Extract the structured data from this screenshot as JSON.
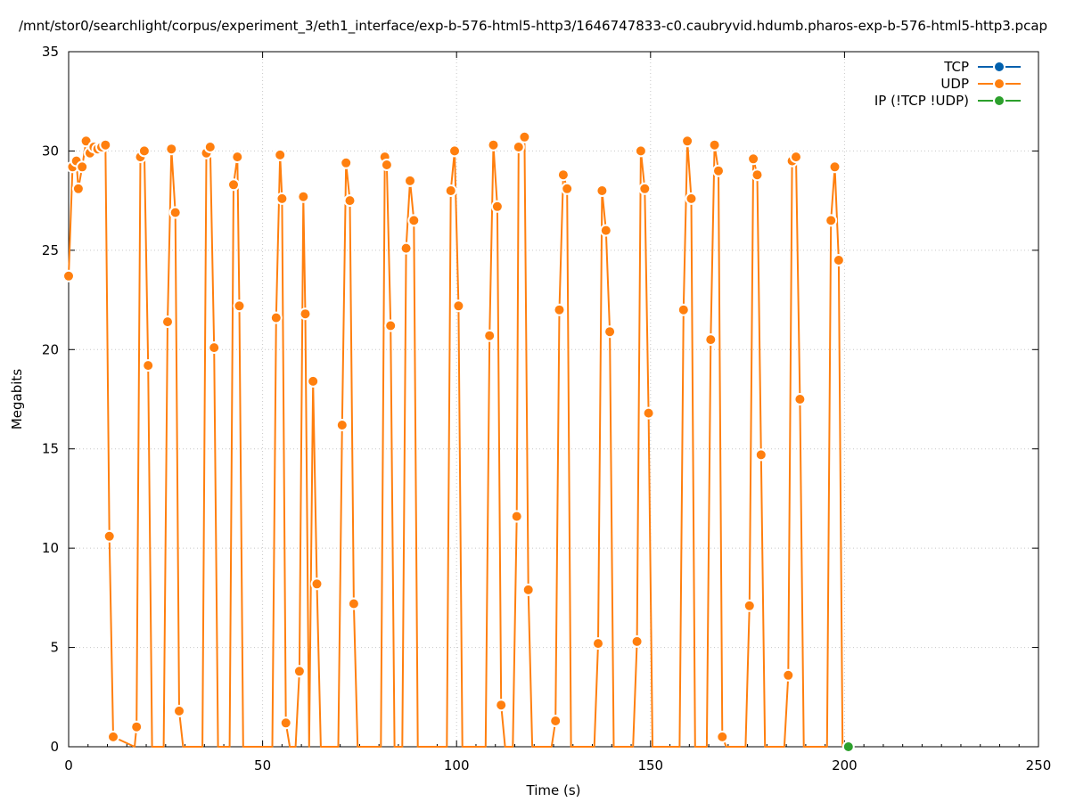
{
  "chart_data": {
    "type": "line",
    "title": "/mnt/stor0/searchlight/corpus/experiment_3/eth1_interface/exp-b-576-html5-http3/1646747833-c0.caubryvid.hdumb.pharos-exp-b-576-html5-http3.pcap",
    "xlabel": "Time (s)",
    "ylabel": "Megabits",
    "xlim": [
      0,
      250
    ],
    "ylim": [
      0,
      35
    ],
    "xticks": [
      0,
      50,
      100,
      150,
      200,
      250
    ],
    "yticks": [
      0,
      5,
      10,
      15,
      20,
      25,
      30,
      35
    ],
    "xtick_labels": [
      "0",
      "50",
      "100",
      "150",
      "200",
      "250"
    ],
    "ytick_labels": [
      "0",
      "5",
      "10",
      "15",
      "20",
      "25",
      "30",
      "35"
    ],
    "grid": true,
    "legend_position": "top-right",
    "series": [
      {
        "name": "TCP",
        "color": "#0060ad",
        "points": []
      },
      {
        "name": "UDP",
        "color": "#ff7f0e",
        "points": [
          [
            0,
            23.7
          ],
          [
            1,
            29.2
          ],
          [
            2,
            29.5
          ],
          [
            2.5,
            28.1
          ],
          [
            3.5,
            29.2
          ],
          [
            4.5,
            30.5
          ],
          [
            5.5,
            29.9
          ],
          [
            6.5,
            30.2
          ],
          [
            7.5,
            30.1
          ],
          [
            8.5,
            30.2
          ],
          [
            9.5,
            30.3
          ],
          [
            10.5,
            10.6
          ],
          [
            11.5,
            0.5
          ],
          [
            17,
            0
          ],
          [
            17.5,
            1.0
          ],
          [
            18.5,
            29.7
          ],
          [
            19.5,
            30.0
          ],
          [
            20.5,
            19.2
          ],
          [
            21.5,
            0
          ],
          [
            24.5,
            0
          ],
          [
            25.5,
            21.4
          ],
          [
            26.5,
            30.1
          ],
          [
            27.5,
            26.9
          ],
          [
            28.5,
            1.8
          ],
          [
            29.5,
            0
          ],
          [
            34.5,
            0
          ],
          [
            35.5,
            29.9
          ],
          [
            36.5,
            30.2
          ],
          [
            37.5,
            20.1
          ],
          [
            38.5,
            0
          ],
          [
            41.5,
            0
          ],
          [
            42.5,
            28.3
          ],
          [
            43.5,
            29.7
          ],
          [
            44,
            22.2
          ],
          [
            45,
            0
          ],
          [
            52.5,
            0
          ],
          [
            53.5,
            21.6
          ],
          [
            54.5,
            29.8
          ],
          [
            55,
            27.6
          ],
          [
            56,
            1.2
          ],
          [
            57,
            0
          ],
          [
            58.5,
            0
          ],
          [
            59.5,
            3.8
          ],
          [
            60.5,
            27.7
          ],
          [
            61,
            21.8
          ],
          [
            62,
            0
          ],
          [
            63,
            18.4
          ],
          [
            64,
            8.2
          ],
          [
            65,
            0
          ],
          [
            69.5,
            0
          ],
          [
            70.5,
            16.2
          ],
          [
            71.5,
            29.4
          ],
          [
            72.5,
            27.5
          ],
          [
            73.5,
            7.2
          ],
          [
            74.5,
            0
          ],
          [
            80.5,
            0
          ],
          [
            81.5,
            29.7
          ],
          [
            82,
            29.3
          ],
          [
            83,
            21.2
          ],
          [
            84,
            0
          ],
          [
            86,
            0
          ],
          [
            87,
            25.1
          ],
          [
            88,
            28.5
          ],
          [
            89,
            26.5
          ],
          [
            90,
            0
          ],
          [
            97.5,
            0
          ],
          [
            98.5,
            28.0
          ],
          [
            99.5,
            30.0
          ],
          [
            100.5,
            22.2
          ],
          [
            101.5,
            0
          ],
          [
            107.5,
            0
          ],
          [
            108.5,
            20.7
          ],
          [
            109.5,
            30.3
          ],
          [
            110.5,
            27.2
          ],
          [
            111.5,
            2.1
          ],
          [
            112.5,
            0
          ],
          [
            114.5,
            0
          ],
          [
            115.5,
            11.6
          ],
          [
            116,
            30.2
          ],
          [
            117.5,
            30.7
          ],
          [
            118.5,
            7.9
          ],
          [
            119.5,
            0
          ],
          [
            124.5,
            0
          ],
          [
            125.5,
            1.3
          ],
          [
            126.5,
            22.0
          ],
          [
            127.5,
            28.8
          ],
          [
            128.5,
            28.1
          ],
          [
            129.5,
            0
          ],
          [
            135.5,
            0
          ],
          [
            136.5,
            5.2
          ],
          [
            137.5,
            28.0
          ],
          [
            138.5,
            26.0
          ],
          [
            139.5,
            20.9
          ],
          [
            140.5,
            0
          ],
          [
            145.5,
            0
          ],
          [
            146.5,
            5.3
          ],
          [
            147.5,
            30.0
          ],
          [
            148.5,
            28.1
          ],
          [
            149.5,
            16.8
          ],
          [
            150.5,
            0
          ],
          [
            157.5,
            0
          ],
          [
            158.5,
            22.0
          ],
          [
            159.5,
            30.5
          ],
          [
            160.5,
            27.6
          ],
          [
            161.5,
            0
          ],
          [
            164.5,
            0
          ],
          [
            165.5,
            20.5
          ],
          [
            166.5,
            30.3
          ],
          [
            167.5,
            29.0
          ],
          [
            168.5,
            0.5
          ],
          [
            169.5,
            0
          ],
          [
            174.5,
            0
          ],
          [
            175.5,
            7.1
          ],
          [
            176.5,
            29.6
          ],
          [
            177.5,
            28.8
          ],
          [
            178.5,
            14.7
          ],
          [
            179.5,
            0
          ],
          [
            184.5,
            0
          ],
          [
            185.5,
            3.6
          ],
          [
            186.5,
            29.5
          ],
          [
            187.5,
            29.7
          ],
          [
            188.5,
            17.5
          ],
          [
            189.5,
            0
          ],
          [
            195.5,
            0
          ],
          [
            196.5,
            26.5
          ],
          [
            197.5,
            29.2
          ],
          [
            198.5,
            24.5
          ],
          [
            199.5,
            0
          ]
        ]
      },
      {
        "name": "IP (!TCP  !UDP)",
        "color": "#2ca02c",
        "points": [
          [
            201,
            0
          ]
        ]
      }
    ]
  }
}
